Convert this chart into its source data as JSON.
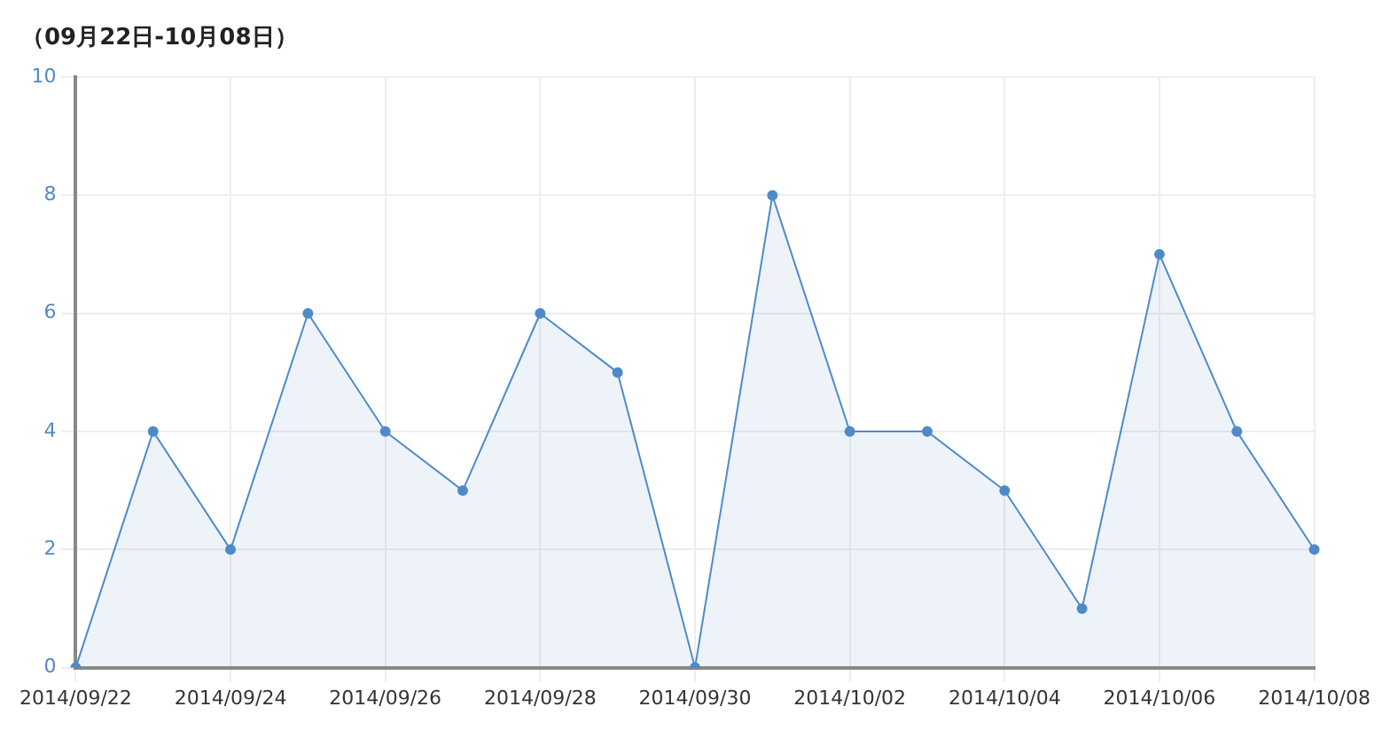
{
  "chart_data": {
    "type": "area",
    "title": "（09月22日-10月08日）",
    "categories": [
      "2014/09/22",
      null,
      "2014/09/24",
      null,
      "2014/09/26",
      null,
      "2014/09/28",
      null,
      "2014/09/30",
      null,
      "2014/10/02",
      null,
      "2014/10/04",
      null,
      "2014/10/06",
      null,
      "2014/10/08"
    ],
    "series": [
      {
        "color": "#4f8ac8",
        "values": [
          0,
          4,
          2,
          6,
          4,
          3,
          6,
          5,
          0,
          8,
          4,
          4,
          3,
          1,
          7,
          4,
          2
        ]
      }
    ],
    "ylim": [
      0,
      10
    ],
    "yticks": [
      0,
      2,
      4,
      6,
      8,
      10
    ],
    "grid": true,
    "marker": "circle",
    "line_style": "solid",
    "legend": false
  }
}
